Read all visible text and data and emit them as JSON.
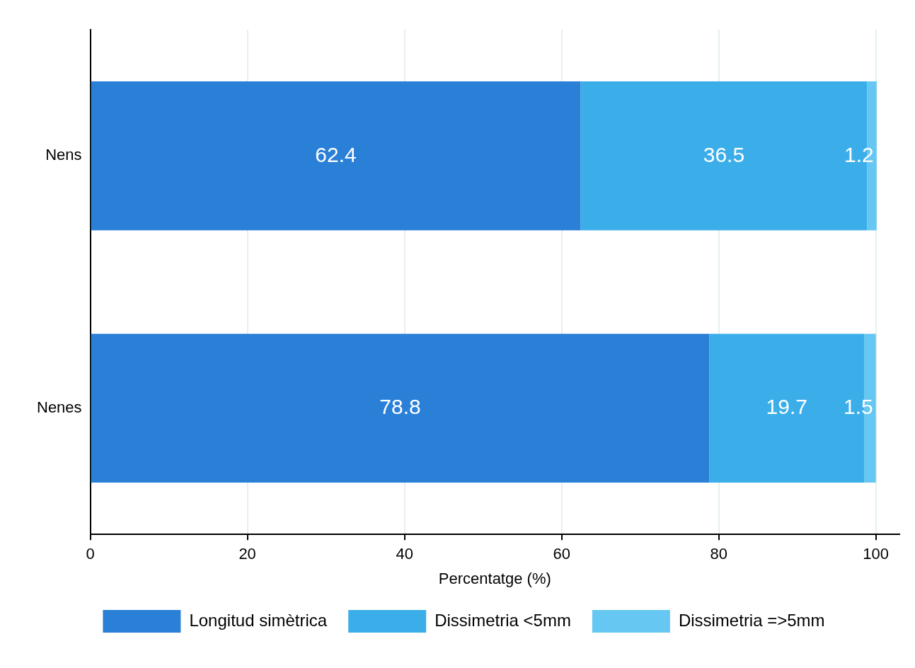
{
  "chart_data": {
    "type": "bar",
    "orientation": "horizontal",
    "stacked": true,
    "categories": [
      "Nens",
      "Nenes"
    ],
    "series": [
      {
        "name": "Longitud simètrica",
        "color": "#2a7fd6",
        "values": [
          62.4,
          78.8
        ]
      },
      {
        "name": "Dissimetria <5mm",
        "color": "#3baeea",
        "values": [
          36.5,
          19.7
        ]
      },
      {
        "name": "Dissimetria =>5mm",
        "color": "#66c8f2",
        "values": [
          1.2,
          1.5
        ]
      }
    ],
    "xlabel": "Percentatge (%)",
    "xlim": [
      0,
      103
    ],
    "xticks": [
      0,
      20,
      40,
      60,
      80,
      100
    ],
    "grid": "x",
    "legend": "bottom",
    "data_labels": true
  }
}
